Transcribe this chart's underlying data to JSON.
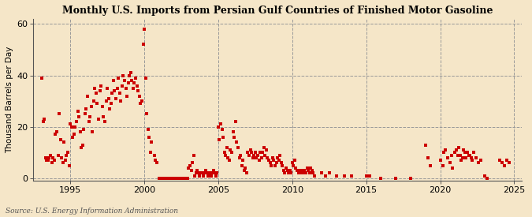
{
  "title": "Monthly U.S. Imports from Persian Gulf Countries of Finished Motor Gasoline",
  "ylabel": "Thousand Barrels per Day",
  "source": "Source: U.S. Energy Information Administration",
  "bg_color": "#f5e6c8",
  "plot_bg_color": "#f5e6c8",
  "marker_color": "#cc0000",
  "marker_size": 6,
  "xlim": [
    1992.5,
    2025.5
  ],
  "ylim": [
    -1,
    62
  ],
  "yticks": [
    0,
    20,
    40,
    60
  ],
  "xticks": [
    1995,
    2000,
    2005,
    2010,
    2015,
    2020,
    2025
  ],
  "data": [
    [
      1993.08,
      39
    ],
    [
      1993.17,
      22
    ],
    [
      1993.25,
      23
    ],
    [
      1993.33,
      8
    ],
    [
      1993.42,
      7
    ],
    [
      1993.5,
      7
    ],
    [
      1993.58,
      8
    ],
    [
      1993.67,
      9
    ],
    [
      1993.75,
      6
    ],
    [
      1993.83,
      8
    ],
    [
      1993.92,
      7
    ],
    [
      1994.0,
      17
    ],
    [
      1994.08,
      18
    ],
    [
      1994.17,
      9
    ],
    [
      1994.25,
      25
    ],
    [
      1994.33,
      15
    ],
    [
      1994.42,
      8
    ],
    [
      1994.5,
      6
    ],
    [
      1994.58,
      14
    ],
    [
      1994.67,
      7
    ],
    [
      1994.75,
      9
    ],
    [
      1994.83,
      10
    ],
    [
      1994.92,
      5
    ],
    [
      1995.0,
      21
    ],
    [
      1995.08,
      20
    ],
    [
      1995.17,
      16
    ],
    [
      1995.25,
      17
    ],
    [
      1995.33,
      20
    ],
    [
      1995.42,
      22
    ],
    [
      1995.5,
      26
    ],
    [
      1995.58,
      24
    ],
    [
      1995.67,
      18
    ],
    [
      1995.75,
      12
    ],
    [
      1995.83,
      13
    ],
    [
      1995.92,
      19
    ],
    [
      1996.0,
      25
    ],
    [
      1996.08,
      27
    ],
    [
      1996.17,
      32
    ],
    [
      1996.25,
      22
    ],
    [
      1996.33,
      24
    ],
    [
      1996.42,
      28
    ],
    [
      1996.5,
      18
    ],
    [
      1996.58,
      30
    ],
    [
      1996.67,
      35
    ],
    [
      1996.75,
      33
    ],
    [
      1996.83,
      29
    ],
    [
      1996.92,
      23
    ],
    [
      1997.0,
      34
    ],
    [
      1997.08,
      36
    ],
    [
      1997.17,
      28
    ],
    [
      1997.25,
      24
    ],
    [
      1997.33,
      22
    ],
    [
      1997.42,
      30
    ],
    [
      1997.5,
      35
    ],
    [
      1997.58,
      31
    ],
    [
      1997.67,
      27
    ],
    [
      1997.75,
      29
    ],
    [
      1997.83,
      33
    ],
    [
      1997.92,
      38
    ],
    [
      1998.0,
      34
    ],
    [
      1998.08,
      31
    ],
    [
      1998.17,
      35
    ],
    [
      1998.25,
      39
    ],
    [
      1998.33,
      33
    ],
    [
      1998.42,
      30
    ],
    [
      1998.5,
      36
    ],
    [
      1998.58,
      40
    ],
    [
      1998.67,
      38
    ],
    [
      1998.75,
      35
    ],
    [
      1998.83,
      32
    ],
    [
      1998.92,
      37
    ],
    [
      1999.0,
      40
    ],
    [
      1999.08,
      41
    ],
    [
      1999.17,
      38
    ],
    [
      1999.25,
      35
    ],
    [
      1999.33,
      37
    ],
    [
      1999.42,
      39
    ],
    [
      1999.5,
      36
    ],
    [
      1999.58,
      34
    ],
    [
      1999.67,
      32
    ],
    [
      1999.75,
      29
    ],
    [
      1999.83,
      30
    ],
    [
      1999.92,
      52
    ],
    [
      2000.0,
      58
    ],
    [
      2000.08,
      39
    ],
    [
      2000.17,
      25
    ],
    [
      2000.25,
      19
    ],
    [
      2000.33,
      16
    ],
    [
      2000.42,
      10
    ],
    [
      2000.5,
      14
    ],
    [
      2000.67,
      9
    ],
    [
      2000.75,
      7
    ],
    [
      2000.83,
      6
    ],
    [
      2001.0,
      0
    ],
    [
      2001.08,
      0
    ],
    [
      2001.17,
      0
    ],
    [
      2001.25,
      0
    ],
    [
      2001.33,
      0
    ],
    [
      2001.42,
      0
    ],
    [
      2001.5,
      0
    ],
    [
      2001.58,
      0
    ],
    [
      2001.67,
      0
    ],
    [
      2001.75,
      0
    ],
    [
      2001.83,
      0
    ],
    [
      2001.92,
      0
    ],
    [
      2002.0,
      0
    ],
    [
      2002.08,
      0
    ],
    [
      2002.17,
      0
    ],
    [
      2002.25,
      0
    ],
    [
      2002.33,
      0
    ],
    [
      2002.42,
      0
    ],
    [
      2002.5,
      0
    ],
    [
      2002.58,
      0
    ],
    [
      2002.67,
      0
    ],
    [
      2002.75,
      0
    ],
    [
      2002.83,
      0
    ],
    [
      2002.92,
      0
    ],
    [
      2003.0,
      4
    ],
    [
      2003.08,
      5
    ],
    [
      2003.17,
      3
    ],
    [
      2003.25,
      6
    ],
    [
      2003.33,
      9
    ],
    [
      2003.42,
      1
    ],
    [
      2003.5,
      2
    ],
    [
      2003.58,
      3
    ],
    [
      2003.67,
      2
    ],
    [
      2003.75,
      1
    ],
    [
      2003.83,
      2
    ],
    [
      2003.92,
      2
    ],
    [
      2004.0,
      1
    ],
    [
      2004.08,
      2
    ],
    [
      2004.17,
      3
    ],
    [
      2004.25,
      2
    ],
    [
      2004.33,
      1
    ],
    [
      2004.42,
      2
    ],
    [
      2004.5,
      1
    ],
    [
      2004.58,
      2
    ],
    [
      2004.67,
      3
    ],
    [
      2004.75,
      2
    ],
    [
      2004.83,
      1
    ],
    [
      2004.92,
      2
    ],
    [
      2005.0,
      20
    ],
    [
      2005.08,
      15
    ],
    [
      2005.17,
      21
    ],
    [
      2005.25,
      19
    ],
    [
      2005.33,
      16
    ],
    [
      2005.42,
      10
    ],
    [
      2005.5,
      9
    ],
    [
      2005.58,
      12
    ],
    [
      2005.67,
      8
    ],
    [
      2005.75,
      7
    ],
    [
      2005.83,
      11
    ],
    [
      2005.92,
      10
    ],
    [
      2006.0,
      18
    ],
    [
      2006.08,
      16
    ],
    [
      2006.17,
      22
    ],
    [
      2006.25,
      14
    ],
    [
      2006.33,
      12
    ],
    [
      2006.42,
      8
    ],
    [
      2006.5,
      9
    ],
    [
      2006.58,
      5
    ],
    [
      2006.67,
      7
    ],
    [
      2006.75,
      3
    ],
    [
      2006.83,
      4
    ],
    [
      2006.92,
      2
    ],
    [
      2007.0,
      10
    ],
    [
      2007.08,
      9
    ],
    [
      2007.17,
      11
    ],
    [
      2007.25,
      10
    ],
    [
      2007.33,
      8
    ],
    [
      2007.42,
      9
    ],
    [
      2007.5,
      10
    ],
    [
      2007.58,
      8
    ],
    [
      2007.67,
      9
    ],
    [
      2007.75,
      7
    ],
    [
      2007.83,
      10
    ],
    [
      2007.92,
      8
    ],
    [
      2008.0,
      10
    ],
    [
      2008.08,
      12
    ],
    [
      2008.17,
      9
    ],
    [
      2008.25,
      11
    ],
    [
      2008.33,
      8
    ],
    [
      2008.42,
      7
    ],
    [
      2008.5,
      6
    ],
    [
      2008.58,
      5
    ],
    [
      2008.67,
      8
    ],
    [
      2008.75,
      7
    ],
    [
      2008.83,
      5
    ],
    [
      2008.92,
      6
    ],
    [
      2009.0,
      8
    ],
    [
      2009.08,
      7
    ],
    [
      2009.17,
      9
    ],
    [
      2009.25,
      6
    ],
    [
      2009.33,
      5
    ],
    [
      2009.42,
      3
    ],
    [
      2009.5,
      2
    ],
    [
      2009.58,
      4
    ],
    [
      2009.67,
      3
    ],
    [
      2009.75,
      2
    ],
    [
      2009.83,
      3
    ],
    [
      2009.92,
      2
    ],
    [
      2010.0,
      6
    ],
    [
      2010.08,
      5
    ],
    [
      2010.17,
      7
    ],
    [
      2010.25,
      4
    ],
    [
      2010.33,
      3
    ],
    [
      2010.42,
      2
    ],
    [
      2010.5,
      3
    ],
    [
      2010.58,
      2
    ],
    [
      2010.67,
      3
    ],
    [
      2010.75,
      2
    ],
    [
      2010.83,
      3
    ],
    [
      2010.92,
      2
    ],
    [
      2011.0,
      4
    ],
    [
      2011.08,
      3
    ],
    [
      2011.17,
      2
    ],
    [
      2011.25,
      4
    ],
    [
      2011.33,
      3
    ],
    [
      2011.42,
      2
    ],
    [
      2011.5,
      1
    ],
    [
      2012.0,
      2
    ],
    [
      2012.25,
      1
    ],
    [
      2012.5,
      2
    ],
    [
      2013.0,
      1
    ],
    [
      2013.5,
      1
    ],
    [
      2014.0,
      1
    ],
    [
      2015.0,
      1
    ],
    [
      2015.25,
      1
    ],
    [
      2016.0,
      0
    ],
    [
      2017.0,
      0
    ],
    [
      2018.0,
      0
    ],
    [
      2019.0,
      13
    ],
    [
      2019.17,
      8
    ],
    [
      2019.33,
      5
    ],
    [
      2020.0,
      7
    ],
    [
      2020.17,
      5
    ],
    [
      2020.25,
      10
    ],
    [
      2020.33,
      11
    ],
    [
      2020.5,
      8
    ],
    [
      2020.67,
      6
    ],
    [
      2020.75,
      9
    ],
    [
      2020.83,
      4
    ],
    [
      2021.0,
      10
    ],
    [
      2021.08,
      11
    ],
    [
      2021.17,
      9
    ],
    [
      2021.25,
      12
    ],
    [
      2021.33,
      9
    ],
    [
      2021.42,
      7
    ],
    [
      2021.5,
      8
    ],
    [
      2021.58,
      11
    ],
    [
      2021.67,
      10
    ],
    [
      2021.75,
      8
    ],
    [
      2021.83,
      10
    ],
    [
      2021.92,
      9
    ],
    [
      2022.0,
      9
    ],
    [
      2022.08,
      8
    ],
    [
      2022.17,
      7
    ],
    [
      2022.25,
      10
    ],
    [
      2022.42,
      8
    ],
    [
      2022.58,
      6
    ],
    [
      2022.75,
      7
    ],
    [
      2023.0,
      1
    ],
    [
      2023.17,
      0
    ],
    [
      2024.0,
      7
    ],
    [
      2024.17,
      6
    ],
    [
      2024.33,
      5
    ],
    [
      2024.5,
      7
    ],
    [
      2024.67,
      6
    ]
  ]
}
